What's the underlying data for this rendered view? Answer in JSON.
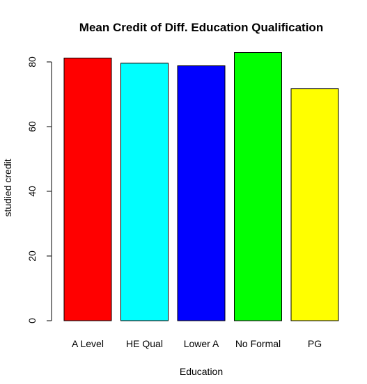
{
  "chart_data": {
    "type": "bar",
    "title": "Mean Credit of Diff. Education Qualification",
    "xlabel": "Education",
    "ylabel": "studied credit",
    "categories": [
      "A Level",
      "HE Qual",
      "Lower A",
      "No Formal",
      "PG"
    ],
    "values": [
      81.2,
      79.6,
      78.8,
      82.9,
      71.7
    ],
    "colors": [
      "#ff0000",
      "#00ffff",
      "#0000ff",
      "#00ff00",
      "#ffff00"
    ],
    "ylim": [
      0,
      86
    ],
    "yticks": [
      0,
      20,
      40,
      60,
      80
    ],
    "grid": false,
    "legend": "none"
  }
}
